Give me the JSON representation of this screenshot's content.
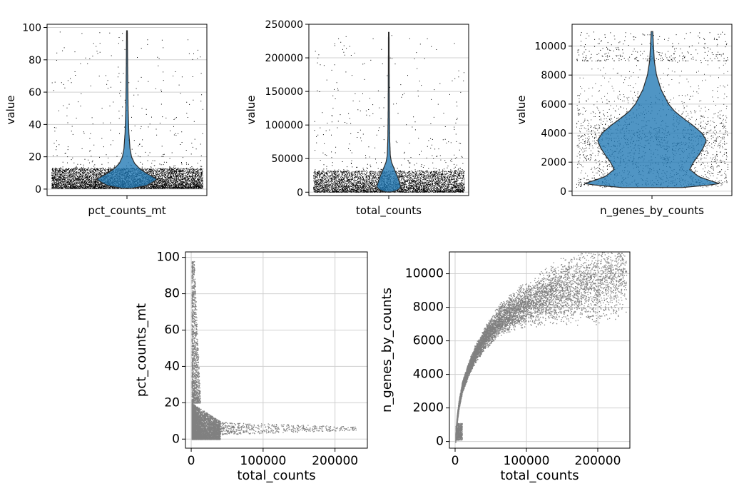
{
  "chart_data": [
    {
      "type": "violin",
      "xlabel": "pct_counts_mt",
      "ylabel": "value",
      "ylim": [
        -4,
        102
      ],
      "yticks": [
        0,
        20,
        40,
        60,
        80,
        100
      ],
      "yticklabels": [
        "0",
        "20",
        "40",
        "60",
        "80",
        "100"
      ],
      "grid": true,
      "violin_color": "#1f77b4",
      "profile": [
        [
          0.5,
          0.06
        ],
        [
          2,
          0.25
        ],
        [
          4,
          0.33
        ],
        [
          6,
          0.4
        ],
        [
          8,
          0.33
        ],
        [
          10,
          0.25
        ],
        [
          13,
          0.16
        ],
        [
          16,
          0.1
        ],
        [
          20,
          0.06
        ],
        [
          25,
          0.04
        ],
        [
          35,
          0.025
        ],
        [
          50,
          0.015
        ],
        [
          70,
          0.01
        ],
        [
          98,
          0.005
        ]
      ],
      "points": {
        "dense_range": [
          0.5,
          13
        ],
        "sparse_max": 98,
        "color": "#000000"
      }
    },
    {
      "type": "violin",
      "xlabel": "total_counts",
      "ylabel": "value",
      "ylim": [
        -5000,
        250000
      ],
      "yticks": [
        0,
        50000,
        100000,
        150000,
        200000,
        250000
      ],
      "yticklabels": [
        "0",
        "50000",
        "100000",
        "150000",
        "200000",
        "250000"
      ],
      "grid": true,
      "violin_color": "#1f77b4",
      "profile": [
        [
          300,
          0.04
        ],
        [
          3000,
          0.12
        ],
        [
          8000,
          0.16
        ],
        [
          15000,
          0.14
        ],
        [
          22000,
          0.12
        ],
        [
          30000,
          0.09
        ],
        [
          38000,
          0.06
        ],
        [
          45000,
          0.035
        ],
        [
          55000,
          0.02
        ],
        [
          80000,
          0.012
        ],
        [
          120000,
          0.008
        ],
        [
          180000,
          0.006
        ],
        [
          238000,
          0.004
        ]
      ],
      "points": {
        "dense_range": [
          300,
          32000
        ],
        "sparse_max": 238000,
        "color": "#000000"
      }
    },
    {
      "type": "violin",
      "xlabel": "n_genes_by_counts",
      "ylabel": "value",
      "ylim": [
        -300,
        11500
      ],
      "yticks": [
        0,
        2000,
        4000,
        6000,
        8000,
        10000
      ],
      "yticklabels": [
        "0",
        "2000",
        "4000",
        "6000",
        "8000",
        "10000"
      ],
      "grid": true,
      "violin_color": "#1f77b4",
      "profile": [
        [
          250,
          0.4
        ],
        [
          500,
          0.9
        ],
        [
          1000,
          0.62
        ],
        [
          1500,
          0.5
        ],
        [
          2000,
          0.55
        ],
        [
          2500,
          0.62
        ],
        [
          3000,
          0.68
        ],
        [
          3500,
          0.72
        ],
        [
          4000,
          0.66
        ],
        [
          4500,
          0.55
        ],
        [
          5000,
          0.42
        ],
        [
          5500,
          0.3
        ],
        [
          6000,
          0.22
        ],
        [
          7000,
          0.12
        ],
        [
          8000,
          0.06
        ],
        [
          9000,
          0.03
        ],
        [
          11000,
          0.01
        ]
      ],
      "points": {
        "dense_range": [
          250,
          9000
        ],
        "sparse_max": 11000,
        "color": "#000000"
      }
    },
    {
      "type": "scatter",
      "xlabel": "total_counts",
      "ylabel": "pct_counts_mt",
      "xlim": [
        -8000,
        245000
      ],
      "ylim": [
        -5,
        103
      ],
      "xticks": [
        0,
        100000,
        200000
      ],
      "xticklabels": [
        "0",
        "100000",
        "200000"
      ],
      "yticks": [
        0,
        20,
        40,
        60,
        80,
        100
      ],
      "yticklabels": [
        "0",
        "20",
        "40",
        "60",
        "80",
        "100"
      ],
      "grid": true,
      "point_color": "#808080",
      "clusters": [
        {
          "x": [
            500,
            40000
          ],
          "y": [
            0,
            20
          ]
        },
        {
          "x": [
            500,
            15000
          ],
          "y": [
            20,
            98
          ]
        },
        {
          "x": [
            30000,
            230000
          ],
          "y": [
            3,
            15
          ]
        }
      ]
    },
    {
      "type": "scatter",
      "xlabel": "total_counts",
      "ylabel": "n_genes_by_counts",
      "xlim": [
        -8000,
        245000
      ],
      "ylim": [
        -400,
        11300
      ],
      "xticks": [
        0,
        100000,
        200000
      ],
      "xticklabels": [
        "0",
        "100000",
        "200000"
      ],
      "yticks": [
        0,
        2000,
        4000,
        6000,
        8000,
        10000
      ],
      "yticklabels": [
        "0",
        "2000",
        "4000",
        "6000",
        "8000",
        "10000"
      ],
      "grid": true,
      "point_color": "#808080",
      "curve": [
        [
          300,
          200
        ],
        [
          2000,
          1200
        ],
        [
          5000,
          2200
        ],
        [
          10000,
          3300
        ],
        [
          20000,
          4500
        ],
        [
          30000,
          5400
        ],
        [
          45000,
          6400
        ],
        [
          60000,
          7200
        ],
        [
          80000,
          7800
        ],
        [
          100000,
          8200
        ],
        [
          130000,
          8700
        ],
        [
          160000,
          9100
        ],
        [
          200000,
          9500
        ],
        [
          240000,
          10400
        ]
      ]
    }
  ]
}
